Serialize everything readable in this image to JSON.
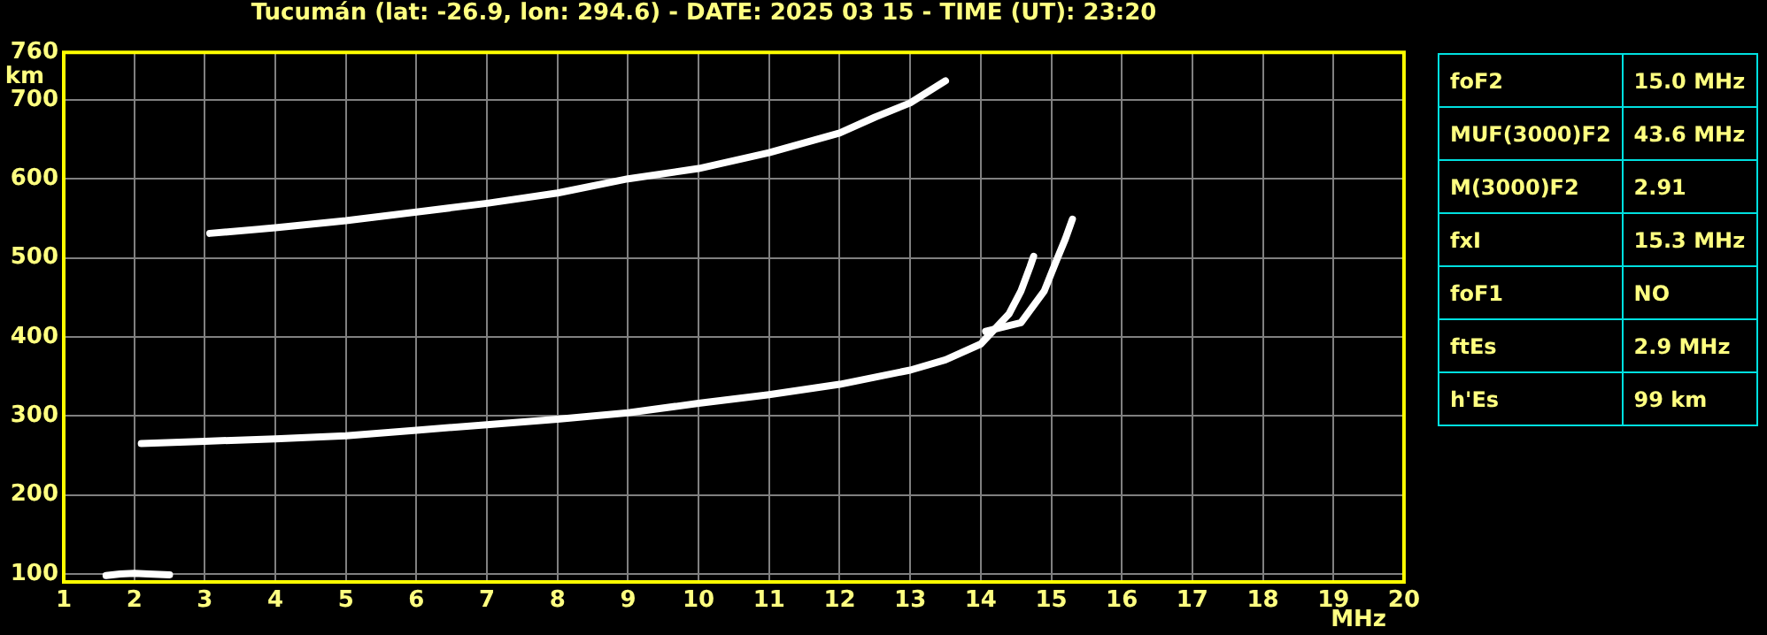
{
  "chart_data": {
    "type": "line",
    "title": "Tucumán (lat: -26.9, lon: 294.6) - DATE: 2025 03 15 - TIME (UT): 23:20",
    "xlabel": "MHz",
    "ylabel": "km",
    "xlim": [
      1,
      20
    ],
    "ylim": [
      90,
      760
    ],
    "xticks": [
      1,
      2,
      3,
      4,
      5,
      6,
      7,
      8,
      9,
      10,
      11,
      12,
      13,
      14,
      15,
      16,
      17,
      18,
      19,
      20
    ],
    "yticks": [
      100,
      200,
      300,
      400,
      500,
      600,
      700,
      760
    ],
    "grid": true,
    "legend": false,
    "marker": "none",
    "line_style": "solid",
    "series": [
      {
        "color": "#ffffff",
        "x": [
          2.1,
          3,
          4,
          5,
          6,
          7,
          8,
          9,
          10,
          11,
          12,
          13,
          13.5,
          14,
          14.4,
          14.57,
          14.7,
          14.75
        ],
        "values": [
          265,
          268,
          271,
          275,
          282,
          289,
          296,
          304,
          316,
          327,
          340,
          358,
          371,
          391,
          429,
          458,
          489,
          502
        ]
      },
      {
        "color": "#ffffff",
        "x": [
          14.07,
          14.57,
          14.9,
          15.07,
          15.2,
          15.3
        ],
        "values": [
          407,
          418,
          458,
          496,
          524,
          549
        ]
      },
      {
        "color": "#ffffff",
        "x": [
          3.07,
          4,
          5,
          6,
          7,
          8,
          9,
          10,
          11,
          12,
          12.5,
          13,
          13.5
        ],
        "values": [
          531,
          538,
          547,
          558,
          569,
          582,
          600,
          613,
          633,
          658,
          678,
          696,
          724
        ]
      },
      {
        "color": "#ffffff",
        "x": [
          1.6,
          1.8,
          2,
          2.2,
          2.5
        ],
        "values": [
          98,
          100,
          101,
          100,
          99
        ]
      }
    ],
    "annotations": [
      "foF2",
      "15.0 MHz",
      "MUF(3000)F2",
      "43.6 MHz",
      "M(3000)F2",
      "2.91",
      "fxI",
      "15.3 MHz",
      "foF1",
      "NO",
      "ftEs",
      "2.9 MHz",
      "h'Es",
      "99 km"
    ]
  }
}
